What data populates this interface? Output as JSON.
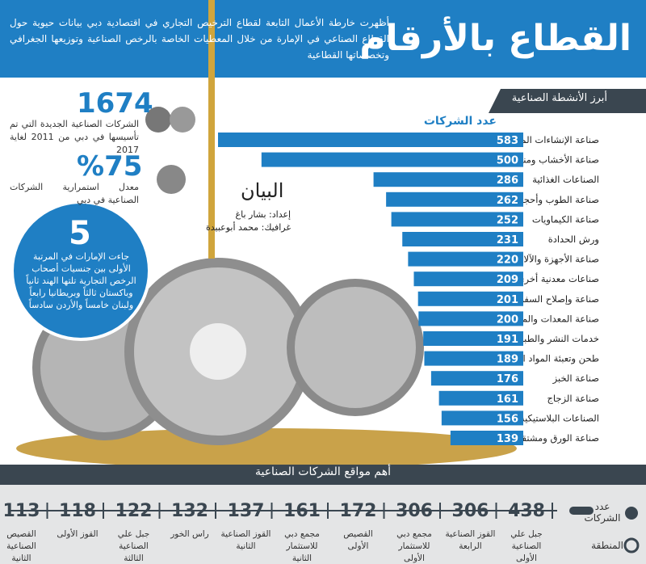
{
  "header": {
    "title": "القطاع بالأرقام",
    "subtitle": "أظهرت خارطة الأعمال التابعة لقطاع الترخيص التجاري في اقتصادية دبي بيانات حيوية حول القطاع الصناعي في الإمارة من خلال المعطيات الخاصة بالرخص الصناعية وتوزيعها الجغرافي وتخصصاتها القطاعية"
  },
  "stats": [
    {
      "value": "1674",
      "text": "الشركات الصناعية الجديدة التي تم تأسيسها في دبي من 2011 لغاية 2017"
    },
    {
      "value": "%75",
      "text": "معدل استمرارية الشركات الصناعية في دبي"
    },
    {
      "value": "5",
      "text": "جاءت الإمارات في المرتبة الأولى بين جنسيات أصحاب الرخص التجارية تلتها الهند ثانياً وباكستان ثالثاً وبريطانيا رابعاً ولبنان خامساً والأردن سادساً"
    }
  ],
  "credits": {
    "logo": "البيان",
    "author": "إعداد: بشار باغ",
    "graphic": "غرافيك: محمد أبوعبيدة"
  },
  "chart_data": {
    "type": "bar",
    "title": "أبرز الأنشطة الصناعية",
    "value_title": "عدد الشركات",
    "color": "#1f7fc4",
    "categories": [
      "صناعة الإنشاءات المعدنية",
      "صناعة الأخشاب ومنتجاتها والأثاث",
      "الصناعات الغذائية",
      "صناعة الطوب وأحجار البناء",
      "صناعة الكيماويات",
      "ورش الحدادة",
      "صناعة الأجهزة والآلات",
      "صناعات معدنية أخرى",
      "صناعة وإصلاح السفن",
      "صناعة المعدات والمحركات",
      "خدمات النشر والطباعة",
      "طحن وتعبئة المواد الغذائية",
      "صناعة الخبز",
      "صناعة الزجاج",
      "الصناعات البلاستيكية",
      "صناعة الورق ومشتقاته"
    ],
    "values": [
      583,
      500,
      286,
      262,
      252,
      231,
      220,
      209,
      201,
      200,
      191,
      189,
      176,
      161,
      156,
      139
    ]
  },
  "locations": {
    "title": "أهم مواقع الشركات الصناعية",
    "count_label": "عدد الشركات",
    "area_label": "المنطقة",
    "items": [
      {
        "count": "438",
        "name": "جبل علي الصناعية الأولى"
      },
      {
        "count": "306",
        "name": "القوز الصناعية الرابعة"
      },
      {
        "count": "306",
        "name": "مجمع دبي للاستثمار الأولى"
      },
      {
        "count": "172",
        "name": "القصيص الأولى"
      },
      {
        "count": "161",
        "name": "مجمع دبي للاستثمار الثانية"
      },
      {
        "count": "137",
        "name": "القوز الصناعية الثانية"
      },
      {
        "count": "132",
        "name": "راس الخور"
      },
      {
        "count": "122",
        "name": "جبل علي الصناعية الثالثة"
      },
      {
        "count": "118",
        "name": "القوز الأولى"
      },
      {
        "count": "113",
        "name": "القصيص الصناعية الثانية"
      }
    ]
  }
}
